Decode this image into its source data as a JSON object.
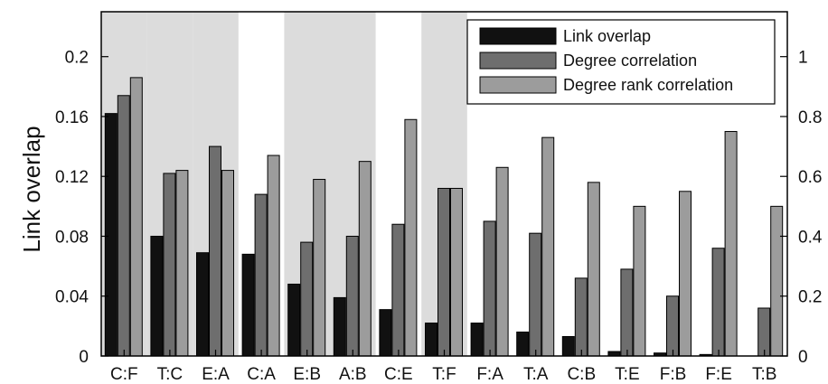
{
  "chart_data": {
    "type": "bar",
    "categories": [
      "C:F",
      "T:C",
      "E:A",
      "C:A",
      "E:B",
      "A:B",
      "C:E",
      "T:F",
      "F:A",
      "T:A",
      "C:B",
      "T:E",
      "F:B",
      "F:E",
      "T:B"
    ],
    "shaded_categories": [
      "C:F",
      "T:C",
      "E:A",
      "E:B",
      "A:B",
      "T:F"
    ],
    "ylabel": "Link overlap",
    "ylim": [
      0,
      0.23
    ],
    "y2lim": [
      0,
      1.15
    ],
    "yticks": [
      "0",
      "0.04",
      "0.08",
      "0.12",
      "0.16",
      "0.2"
    ],
    "y2ticks": [
      "0",
      "0.2",
      "0.4",
      "0.6",
      "0.8",
      "1"
    ],
    "legend_position": "top-right",
    "series": [
      {
        "name": "Link overlap",
        "axis": "left",
        "color": "#111111",
        "values": [
          0.162,
          0.08,
          0.069,
          0.068,
          0.048,
          0.039,
          0.031,
          0.022,
          0.022,
          0.016,
          0.013,
          0.003,
          0.002,
          0.001,
          0.0
        ]
      },
      {
        "name": "Degree correlation",
        "axis": "right",
        "color": "#6e6e6e",
        "values": [
          0.87,
          0.61,
          0.7,
          0.54,
          0.38,
          0.4,
          0.44,
          0.56,
          0.45,
          0.41,
          0.26,
          0.29,
          0.2,
          0.36,
          0.16
        ]
      },
      {
        "name": "Degree rank correlation",
        "axis": "right",
        "color": "#9c9c9c",
        "values": [
          0.93,
          0.62,
          0.62,
          0.67,
          0.59,
          0.65,
          0.79,
          0.56,
          0.63,
          0.73,
          0.58,
          0.5,
          0.55,
          0.75,
          0.5
        ]
      }
    ]
  }
}
